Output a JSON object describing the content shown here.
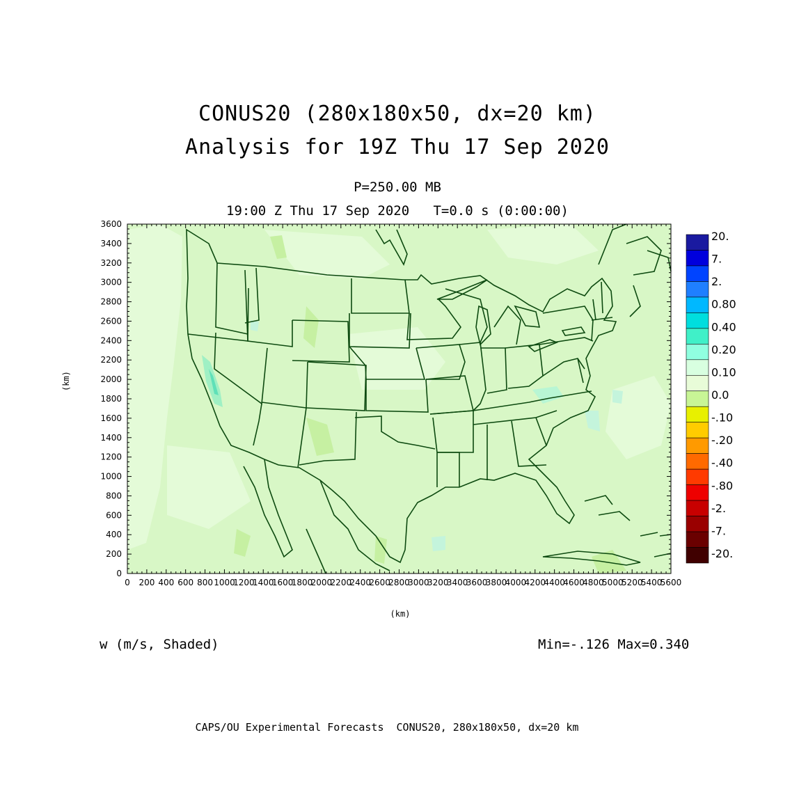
{
  "title": {
    "line1": "CONUS20 (280x180x50, dx=20 km)",
    "line2": "Analysis for 19Z Thu 17 Sep 2020"
  },
  "level": "P=250.00 MB",
  "time_line": "19:00 Z Thu 17 Sep 2020   T=0.0 s (0:00:00)",
  "axes": {
    "x_unit": "(km)",
    "y_unit": "(km)",
    "x_ticks": [
      "0",
      "200",
      "400",
      "600",
      "800",
      "1000",
      "1200",
      "1400",
      "1600",
      "1800",
      "2000",
      "2200",
      "2400",
      "2600",
      "2800",
      "3000",
      "3200",
      "3400",
      "3600",
      "3800",
      "4000",
      "4200",
      "4400",
      "4600",
      "4800",
      "5000",
      "5200",
      "5400",
      "5600"
    ],
    "y_ticks": [
      "0",
      "200",
      "400",
      "600",
      "800",
      "1000",
      "1200",
      "1400",
      "1600",
      "1800",
      "2000",
      "2200",
      "2400",
      "2600",
      "2800",
      "3000",
      "3200",
      "3400",
      "3600"
    ],
    "x_range": [
      0,
      5600
    ],
    "y_range": [
      0,
      3600
    ]
  },
  "field_label": "w (m/s, Shaded)",
  "min_max": "Min=-.126 Max=0.340",
  "footer": "CAPS/OU Experimental Forecasts  CONUS20, 280x180x50, dx=20 km",
  "colorbar": {
    "labels": [
      "20.",
      "7.",
      "2.",
      "0.80",
      "0.40",
      "0.20",
      "0.10",
      "0.0",
      "-.10",
      "-.20",
      "-.40",
      "-.80",
      "-2.",
      "-7.",
      "-20."
    ],
    "colors": [
      "#1a1aa0",
      "#0000dd",
      "#0044ff",
      "#1f7fff",
      "#00b8ff",
      "#00dede",
      "#40f0c8",
      "#90ffe0",
      "#d8ffe0",
      "#e8fcd8",
      "#c8f596",
      "#e8f000",
      "#ffcc00",
      "#ff9a00",
      "#ff6a00",
      "#ff3a00",
      "#ee0000",
      "#c80000",
      "#9a0000",
      "#6a0000",
      "#400000"
    ]
  },
  "map": {
    "background_color": "#d8f7c6",
    "boundary_color": "#0d4a10"
  }
}
